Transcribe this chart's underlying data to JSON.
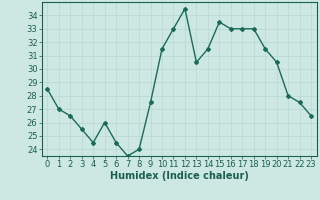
{
  "x": [
    0,
    1,
    2,
    3,
    4,
    5,
    6,
    7,
    8,
    9,
    10,
    11,
    12,
    13,
    14,
    15,
    16,
    17,
    18,
    19,
    20,
    21,
    22,
    23
  ],
  "y": [
    28.5,
    27,
    26.5,
    25.5,
    24.5,
    26,
    24.5,
    23.5,
    24,
    27.5,
    31.5,
    33,
    34.5,
    30.5,
    31.5,
    33.5,
    33,
    33,
    33,
    31.5,
    30.5,
    28,
    27.5,
    26.5
  ],
  "line_color": "#1a6b5a",
  "marker": "D",
  "marker_size": 2.0,
  "linewidth": 1.0,
  "bg_color": "#cde8e2",
  "grid_color": "#b8d8d0",
  "xlabel": "Humidex (Indice chaleur)",
  "xlabel_color": "#1a5f50",
  "xlabel_fontsize": 7,
  "tick_color": "#1a5f50",
  "tick_fontsize": 6,
  "ylim": [
    23.5,
    35
  ],
  "xlim": [
    -0.5,
    23.5
  ],
  "yticks": [
    24,
    25,
    26,
    27,
    28,
    29,
    30,
    31,
    32,
    33,
    34
  ],
  "xticks": [
    0,
    1,
    2,
    3,
    4,
    5,
    6,
    7,
    8,
    9,
    10,
    11,
    12,
    13,
    14,
    15,
    16,
    17,
    18,
    19,
    20,
    21,
    22,
    23
  ]
}
